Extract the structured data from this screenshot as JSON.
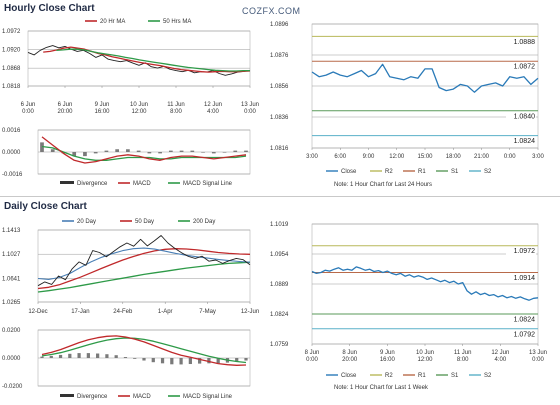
{
  "page": {
    "hourly_title": "Hourly Close Chart",
    "daily_title": "Daily Close Chart",
    "brand": "COZFX.COM"
  },
  "colors": {
    "price": "#222222",
    "ma20": "#c0292b",
    "ma50": "#2e9a48",
    "ma200": "#2e9a48",
    "close": "#2a7ab8",
    "r2": "#b8b85a",
    "r1": "#b86a4a",
    "s1": "#5a9a5a",
    "s2": "#5ab0c8",
    "grid": "#9a9a9a",
    "hist": "#7a7a7a"
  },
  "chart_data": [
    {
      "id": "hourly_price",
      "type": "line",
      "ylim": [
        1.0818,
        1.0972
      ],
      "yticks": [
        "1.0972",
        "1.0920",
        "1.0868",
        "1.0818"
      ],
      "yticks_v": [
        1.0972,
        1.092,
        1.0868,
        1.0818
      ],
      "xticks": [
        "6 Jun\n0:00",
        "6 Jun\n20:00",
        "9 Jun\n16:00",
        "10 Jun\n12:00",
        "11 Jun\n8:00",
        "12 Jun\n4:00",
        "13 Jun\n0:00"
      ],
      "legend": [
        "20 Hr MA",
        "50 Hrs MA"
      ],
      "price": [
        1.0912,
        1.0905,
        1.0918,
        1.0926,
        1.0931,
        1.0925,
        1.0929,
        1.0921,
        1.0915,
        1.0918,
        1.0909,
        1.0898,
        1.0905,
        1.0893,
        1.0889,
        1.0886,
        1.0889,
        1.0882,
        1.0876,
        1.0883,
        1.0872,
        1.0868,
        1.0873,
        1.0865,
        1.0861,
        1.0858,
        1.0862,
        1.0855,
        1.0858,
        1.0857,
        1.0861,
        1.0853,
        1.0848,
        1.0852,
        1.0857,
        1.0859,
        1.0862
      ],
      "ma20": [
        1.0913,
        1.0915,
        1.0919,
        1.0924,
        1.0927,
        1.0924,
        1.0921,
        1.0915,
        1.0909,
        1.0905,
        1.09,
        1.0896,
        1.0892,
        1.0888,
        1.0884,
        1.0881,
        1.0878,
        1.0875,
        1.0871,
        1.0867,
        1.0864,
        1.0862,
        1.086,
        1.0858,
        1.0857,
        1.0858,
        1.0859,
        1.0858,
        1.0858,
        1.0859,
        1.086
      ],
      "ma50": [
        1.0918,
        1.0919,
        1.0921,
        1.0921,
        1.0919,
        1.0915,
        1.0911,
        1.0908,
        1.0905,
        1.0902,
        1.0898,
        1.0895,
        1.0891,
        1.0888,
        1.0885,
        1.0882,
        1.0879,
        1.0876,
        1.0873,
        1.087,
        1.0868,
        1.0866,
        1.0864,
        1.0862,
        1.0861,
        1.086,
        1.086,
        1.0861,
        1.0861
      ]
    },
    {
      "id": "hourly_macd",
      "type": "line",
      "ylim": [
        -0.0016,
        0.0016
      ],
      "yticks": [
        "0.0016",
        "0.0000",
        "-0.0016"
      ],
      "yticks_v": [
        0.0016,
        0.0,
        -0.0016
      ],
      "legend": [
        "Divergence",
        "MACD",
        "MACD Signal Line"
      ],
      "macd": [
        0.0011,
        0.0005,
        -0.0001,
        -0.0006,
        -0.0008,
        -0.0007,
        -0.0005,
        -0.0003,
        -0.0002,
        -0.0003,
        -0.0005,
        -0.0006,
        -0.0004,
        -0.0003,
        -0.0003,
        -0.0004,
        -0.0005,
        -0.0004,
        -0.0003,
        -0.0002
      ],
      "signal": [
        0.0004,
        0.0003,
        0.0,
        -0.0003,
        -0.0005,
        -0.0006,
        -0.0006,
        -0.0005,
        -0.0004,
        -0.0004,
        -0.0004,
        -0.0005,
        -0.0005,
        -0.0004,
        -0.0004,
        -0.0004,
        -0.0004,
        -0.0004,
        -0.0004,
        -0.0003
      ],
      "divergence": [
        0.0007,
        0.0002,
        -0.0001,
        -0.0003,
        -0.0003,
        -0.0001,
        0.0001,
        0.0002,
        0.0002,
        0.0001,
        -0.0001,
        -0.0001,
        0.0001,
        0.0001,
        0.0001,
        0.0,
        -0.0001,
        0.0,
        0.0001,
        0.0001
      ]
    },
    {
      "id": "hourly_close",
      "type": "line",
      "ylim": [
        1.0816,
        1.0896
      ],
      "yticks": [
        "1.0896",
        "1.0876",
        "1.0856",
        "1.0836",
        "1.0816"
      ],
      "yticks_v": [
        1.0896,
        1.0876,
        1.0856,
        1.0836,
        1.0816
      ],
      "xticks": [
        "3:00",
        "6:00",
        "9:00",
        "12:00",
        "15:00",
        "18:00",
        "21:00",
        "0:00",
        "3:00"
      ],
      "levels": [
        {
          "name": "R2",
          "value": 1.0888,
          "label": "1.0888"
        },
        {
          "name": "R1",
          "value": 1.0872,
          "label": "1.0872"
        },
        {
          "name": "S1",
          "value": 1.084,
          "label": "1.0840"
        },
        {
          "name": "S2",
          "value": 1.0824,
          "label": "1.0824"
        }
      ],
      "legend": [
        "Close",
        "R2",
        "R1",
        "S1",
        "S2"
      ],
      "note": "Note: 1 Hour Chart for Last 24 Hours",
      "close": [
        1.0865,
        1.0862,
        1.0863,
        1.0865,
        1.0863,
        1.0862,
        1.0864,
        1.0866,
        1.0862,
        1.0864,
        1.087,
        1.0862,
        1.0861,
        1.086,
        1.0862,
        1.0861,
        1.0867,
        1.0867,
        1.0855,
        1.0853,
        1.0854,
        1.0857,
        1.0856,
        1.0852,
        1.0856,
        1.0857,
        1.0858,
        1.0856,
        1.0862,
        1.0861,
        1.0862,
        1.0857,
        1.0861
      ]
    },
    {
      "id": "daily_price",
      "type": "line",
      "ylim": [
        1.0265,
        1.1413
      ],
      "yticks": [
        "1.1413",
        "1.1027",
        "1.0641",
        "1.0265"
      ],
      "yticks_v": [
        1.1413,
        1.1027,
        1.0641,
        1.0265
      ],
      "xticks": [
        "12-Dec",
        "17-Jan",
        "24-Feb",
        "1-Apr",
        "7-May",
        "12-Jun"
      ],
      "legend": [
        "20 Day",
        "50 Day",
        "200 Day"
      ],
      "price": [
        1.0525,
        1.0585,
        1.0545,
        1.068,
        1.062,
        1.0795,
        1.0905,
        1.085,
        1.1085,
        1.1055,
        1.0985,
        1.1065,
        1.1145,
        1.1205,
        1.1155,
        1.1265,
        1.116,
        1.124,
        1.1325,
        1.1205,
        1.112,
        1.105,
        1.099,
        1.096,
        1.0995,
        1.0915,
        1.0935,
        1.088,
        1.0925,
        1.096,
        1.094,
        1.086
      ],
      "ma20": [
        1.064,
        1.0625,
        1.0655,
        1.072,
        1.0815,
        1.0905,
        1.0978,
        1.1035,
        1.1085,
        1.1115,
        1.1125,
        1.1108,
        1.1075,
        1.104,
        1.101,
        1.0985,
        1.0965,
        1.0945,
        1.0925,
        1.091,
        1.09
      ],
      "ma50": [
        1.048,
        1.05,
        1.054,
        1.06,
        1.066,
        1.073,
        1.08,
        1.087,
        1.0935,
        1.099,
        1.104,
        1.108,
        1.1105,
        1.1115,
        1.111,
        1.1095,
        1.1075,
        1.1055,
        1.104,
        1.103,
        1.1025
      ],
      "ma200": [
        1.0425,
        1.0445,
        1.047,
        1.0495,
        1.0525,
        1.0555,
        1.0585,
        1.0615,
        1.0645,
        1.0675,
        1.0705,
        1.073,
        1.0755,
        1.078,
        1.0805,
        1.0825,
        1.0845,
        1.0865,
        1.088,
        1.089,
        1.09
      ]
    },
    {
      "id": "daily_macd",
      "type": "line",
      "ylim": [
        -0.02,
        0.02
      ],
      "yticks": [
        "0.0200",
        "0.0000",
        "-0.0200"
      ],
      "yticks_v": [
        0.02,
        0.0,
        -0.02
      ],
      "legend": [
        "Divergence",
        "MACD",
        "MACD Signal Line"
      ],
      "macd": [
        0.0025,
        0.004,
        0.006,
        0.0085,
        0.011,
        0.013,
        0.0145,
        0.0155,
        0.0158,
        0.015,
        0.0135,
        0.0115,
        0.009,
        0.0065,
        0.004,
        0.002,
        0.0005,
        -0.001,
        -0.0025,
        -0.004,
        -0.0048,
        -0.0052,
        -0.005
      ],
      "signal": [
        0.0015,
        0.0025,
        0.0038,
        0.0055,
        0.0075,
        0.0095,
        0.0113,
        0.0128,
        0.0138,
        0.0143,
        0.0141,
        0.0133,
        0.012,
        0.0103,
        0.0085,
        0.0066,
        0.0048,
        0.003,
        0.0013,
        -0.0002,
        -0.0015,
        -0.0025,
        -0.0032
      ],
      "divergence": [
        0.001,
        0.0015,
        0.0022,
        0.003,
        0.0035,
        0.0035,
        0.0032,
        0.0027,
        0.002,
        0.0007,
        -0.0006,
        -0.0018,
        -0.003,
        -0.0038,
        -0.0045,
        -0.0046,
        -0.0043,
        -0.004,
        -0.0038,
        -0.0038,
        -0.0033,
        -0.0027,
        -0.0018
      ]
    },
    {
      "id": "daily_close",
      "type": "line",
      "ylim": [
        1.0759,
        1.1019
      ],
      "yticks": [
        "1.1019",
        "1.0954",
        "1.0889",
        "1.0824",
        "1.0759"
      ],
      "yticks_v": [
        1.1019,
        1.0954,
        1.0889,
        1.0824,
        1.0759
      ],
      "xticks": [
        "8 Jun\n0:00",
        "8 Jun\n20:00",
        "9 Jun\n16:00",
        "10 Jun\n12:00",
        "11 Jun\n8:00",
        "12 Jun\n4:00",
        "13 Jun\n0:00"
      ],
      "levels": [
        {
          "name": "R2",
          "value": 1.0972,
          "label": "1.0972"
        },
        {
          "name": "R1",
          "value": 1.0914,
          "label": "1.0914"
        },
        {
          "name": "S1",
          "value": 1.0824,
          "label": "1.0824"
        },
        {
          "name": "S2",
          "value": 1.0792,
          "label": "1.0792"
        }
      ],
      "legend": [
        "Close",
        "R2",
        "R1",
        "S1",
        "S2"
      ],
      "note": "Note: 1 Hour Chart for Last 1 Week",
      "close": [
        1.0916,
        1.0912,
        1.0914,
        1.0919,
        1.0917,
        1.0921,
        1.0924,
        1.0919,
        1.0921,
        1.0919,
        1.0926,
        1.0923,
        1.0919,
        1.0921,
        1.0916,
        1.0918,
        1.0914,
        1.0917,
        1.0912,
        1.0909,
        1.0912,
        1.0906,
        1.0909,
        1.0904,
        1.0907,
        1.0904,
        1.0899,
        1.0902,
        1.0898,
        1.0894,
        1.0897,
        1.0892,
        1.0895,
        1.0889,
        1.0892,
        1.0874,
        1.0867,
        1.0872,
        1.0866,
        1.0869,
        1.0864,
        1.0866,
        1.0861,
        1.0864,
        1.0859,
        1.0862,
        1.0858,
        1.0861,
        1.0857,
        1.0854,
        1.0858,
        1.0859
      ]
    }
  ]
}
